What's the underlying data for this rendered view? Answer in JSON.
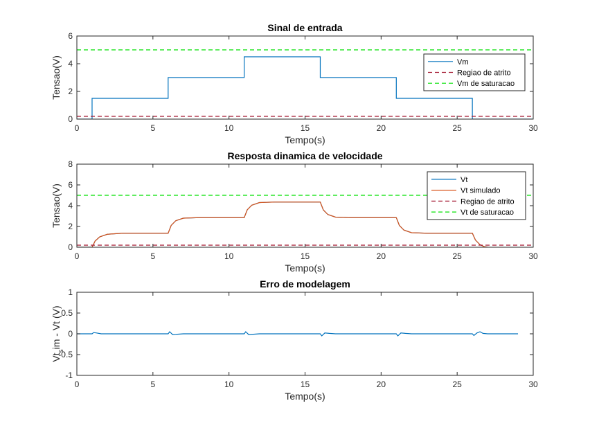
{
  "chart_data": [
    {
      "type": "line",
      "title": "Sinal de entrada",
      "xlabel": "Tempo(s)",
      "ylabel": "Tensao(V)",
      "xlim": [
        0,
        30
      ],
      "ylim": [
        0,
        6
      ],
      "xticks": [
        "0",
        "5",
        "10",
        "15",
        "20",
        "25",
        "30"
      ],
      "yticks": [
        "0",
        "2",
        "4",
        "6"
      ],
      "legend_position": "top-right",
      "series": [
        {
          "name": "Vm",
          "color": "#0072BD",
          "style": "solid",
          "x": [
            0,
            1,
            1,
            6,
            6,
            11,
            11,
            16,
            16,
            21,
            21,
            26,
            26,
            30
          ],
          "y": [
            0,
            0,
            1.5,
            1.5,
            3,
            3,
            4.5,
            4.5,
            3,
            3,
            1.5,
            1.5,
            0,
            0
          ]
        },
        {
          "name": "Regiao de atrito",
          "color": "#A2142F",
          "style": "dashed",
          "x": [
            0,
            30
          ],
          "y": [
            0.2,
            0.2
          ]
        },
        {
          "name": "Vm de saturacao",
          "color": "#00E000",
          "style": "dashed",
          "x": [
            0,
            30
          ],
          "y": [
            5,
            5
          ]
        }
      ]
    },
    {
      "type": "line",
      "title": "Resposta dinamica de velocidade",
      "xlabel": "Tempo(s)",
      "ylabel": "Tensao(V)",
      "xlim": [
        0,
        30
      ],
      "ylim": [
        0,
        8
      ],
      "xticks": [
        "0",
        "5",
        "10",
        "15",
        "20",
        "25",
        "30"
      ],
      "yticks": [
        "0",
        "2",
        "4",
        "6",
        "8"
      ],
      "legend_position": "top-right",
      "series": [
        {
          "name": "Vt",
          "color": "#0072BD",
          "style": "solid",
          "x": [
            0,
            1,
            1.2,
            1.5,
            2,
            3,
            6,
            6.2,
            6.5,
            7,
            8,
            11,
            11.2,
            11.5,
            12,
            13,
            16,
            16.2,
            16.5,
            17,
            18,
            21,
            21.2,
            21.5,
            22,
            23,
            26,
            26.2,
            26.5,
            26.8,
            27
          ],
          "y": [
            0,
            0,
            0.6,
            1.0,
            1.25,
            1.35,
            1.35,
            2.1,
            2.55,
            2.8,
            2.85,
            2.85,
            3.6,
            4.05,
            4.3,
            4.35,
            4.35,
            3.6,
            3.15,
            2.9,
            2.85,
            2.85,
            2.1,
            1.65,
            1.4,
            1.35,
            1.35,
            0.7,
            0.25,
            0.05,
            0
          ]
        },
        {
          "name": "Vt simulado",
          "color": "#D95319",
          "style": "solid",
          "x": [
            0,
            1,
            1.2,
            1.5,
            2,
            3,
            6,
            6.2,
            6.5,
            7,
            8,
            11,
            11.2,
            11.5,
            12,
            13,
            16,
            16.2,
            16.5,
            17,
            18,
            21,
            21.2,
            21.5,
            22,
            23,
            26,
            26.2,
            26.5,
            26.8,
            27
          ],
          "y": [
            0,
            0,
            0.6,
            1.0,
            1.25,
            1.35,
            1.35,
            2.1,
            2.55,
            2.8,
            2.85,
            2.85,
            3.6,
            4.05,
            4.3,
            4.35,
            4.35,
            3.6,
            3.15,
            2.9,
            2.85,
            2.85,
            2.1,
            1.65,
            1.4,
            1.35,
            1.35,
            0.7,
            0.25,
            0.05,
            0
          ]
        },
        {
          "name": "Regiao de atrito",
          "color": "#A2142F",
          "style": "dashed",
          "x": [
            0,
            30
          ],
          "y": [
            0.2,
            0.2
          ]
        },
        {
          "name": "Vt de saturacao",
          "color": "#00E000",
          "style": "dashed",
          "x": [
            0,
            30
          ],
          "y": [
            5,
            5
          ]
        }
      ]
    },
    {
      "type": "line",
      "title": "Erro de modelagem",
      "xlabel": "Tempo(s)",
      "ylabel": "Vt_sim - Vt (V)",
      "ylabel_parts": {
        "main": "Vt",
        "sub": "s",
        "rest": "im - Vt (V)"
      },
      "xlim": [
        0,
        30
      ],
      "ylim": [
        -1,
        1
      ],
      "xticks": [
        "0",
        "5",
        "10",
        "15",
        "20",
        "25",
        "30"
      ],
      "yticks": [
        "-1",
        "-0.5",
        "0",
        "0.5",
        "1"
      ],
      "series": [
        {
          "name": "",
          "color": "#0072BD",
          "style": "solid",
          "x": [
            0,
            1,
            1.1,
            1.3,
            1.6,
            2,
            6,
            6.1,
            6.3,
            6.6,
            7,
            11,
            11.1,
            11.3,
            11.6,
            12,
            16,
            16.1,
            16.3,
            16.6,
            17,
            21,
            21.1,
            21.3,
            21.6,
            22,
            26,
            26.1,
            26.3,
            26.5,
            26.7,
            27,
            29
          ],
          "y": [
            0,
            0,
            0.03,
            0.02,
            0.0,
            0,
            0,
            0.05,
            -0.02,
            -0.01,
            0,
            0,
            0.05,
            -0.02,
            -0.01,
            0,
            0,
            -0.05,
            0.02,
            0.01,
            0,
            0,
            -0.05,
            0.02,
            0.01,
            0,
            0,
            -0.04,
            0.02,
            0.05,
            0.01,
            0,
            0
          ]
        }
      ]
    }
  ]
}
